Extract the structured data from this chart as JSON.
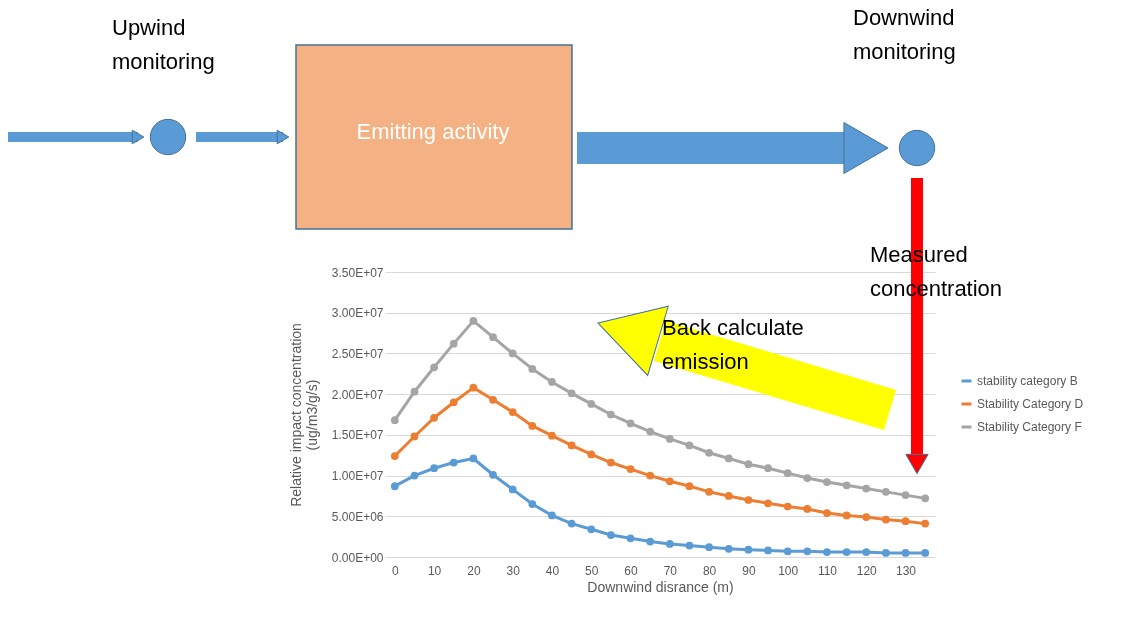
{
  "chart_data": {
    "type": "line",
    "xlabel": "Downwind disrance (m)",
    "ylabel": "Relative impact concentration\n(ug/m3/g/s)",
    "categories": [
      "0",
      null,
      "10",
      null,
      "20",
      null,
      "30",
      null,
      "40",
      null,
      "50",
      null,
      "60",
      null,
      "70",
      null,
      "80",
      null,
      "90",
      null,
      "100",
      null,
      "110",
      null,
      "120",
      null,
      "130",
      null
    ],
    "ylim": [
      0,
      35000000
    ],
    "yticks": [
      {
        "value": 0,
        "label": "0.00E+00"
      },
      {
        "value": 5000000,
        "label": "5.00E+06"
      },
      {
        "value": 10000000,
        "label": "1.00E+07"
      },
      {
        "value": 15000000,
        "label": "1.50E+07"
      },
      {
        "value": 20000000,
        "label": "2.00E+07"
      },
      {
        "value": 25000000,
        "label": "2.50E+07"
      },
      {
        "value": 30000000,
        "label": "3.00E+07"
      },
      {
        "value": 35000000,
        "label": "3.50E+07"
      }
    ],
    "grid": "y",
    "legend": "right",
    "marker": "circle",
    "line_style": "solid",
    "series": [
      {
        "name": "stability category B",
        "color": "#5b9bd5",
        "values": [
          8700000,
          10000000,
          10900000,
          11600000,
          12100000,
          10100000,
          8300000,
          6500000,
          5100000,
          4100000,
          3400000,
          2700000,
          2300000,
          1900000,
          1600000,
          1400000,
          1200000,
          1000000,
          900000,
          800000,
          700000,
          700000,
          600000,
          600000,
          600000,
          500000,
          500000,
          500000
        ]
      },
      {
        "name": "Stability Category D",
        "color": "#ed7d31",
        "values": [
          12400000,
          14800000,
          17100000,
          19000000,
          20800000,
          19300000,
          17800000,
          16100000,
          14900000,
          13700000,
          12600000,
          11600000,
          10800000,
          10000000,
          9300000,
          8700000,
          8000000,
          7500000,
          7000000,
          6600000,
          6200000,
          5900000,
          5400000,
          5100000,
          4900000,
          4600000,
          4400000,
          4100000
        ]
      },
      {
        "name": "Stability Category F",
        "color": "#a5a5a5",
        "values": [
          16800000,
          20300000,
          23300000,
          26200000,
          29000000,
          27000000,
          25000000,
          23100000,
          21500000,
          20100000,
          18800000,
          17500000,
          16400000,
          15400000,
          14500000,
          13700000,
          12800000,
          12100000,
          11400000,
          10900000,
          10300000,
          9700000,
          9200000,
          8800000,
          8400000,
          8000000,
          7600000,
          7200000
        ]
      }
    ],
    "annotations": [
      "Upwind\nmonitoring",
      "Emitting activity",
      "Downwind\nmonitoring",
      "Measured\nconcentration",
      "Back calculate\nemission"
    ]
  }
}
